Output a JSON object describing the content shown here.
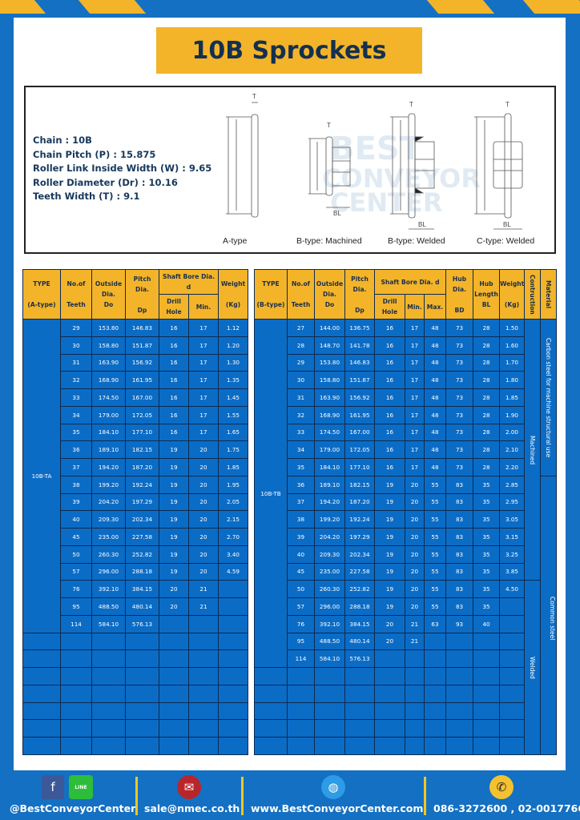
{
  "title": "10B Sprockets",
  "specs": [
    "Chain  :  10B",
    "Chain Pitch (P)  :  15.875",
    "Roller Link Inside Width (W) : 9.65",
    "Roller Diameter (Dr) : 10.16",
    "Teeth Width (T)  :  9.1"
  ],
  "diagram": {
    "captions": [
      "A-type",
      "B-type: Machined",
      "B-type: Welded",
      "C-type: Welded"
    ],
    "labels": {
      "T": "T",
      "Do": "Do",
      "Dp": "Dp",
      "d": "d",
      "BD": "BD",
      "BL": "BL"
    }
  },
  "table_a": {
    "headers": {
      "type": "TYPE",
      "type_sub": "(A-type)",
      "teeth": "No.of",
      "teeth_sub": "Teeth",
      "do": "Outside",
      "do_sub": "Dia.",
      "do_sub2": "Do",
      "dp": "Pitch Dia.",
      "dp_sub": "Dp",
      "bore": "Shaft Bore Dia. d",
      "drill": "Drill Hole",
      "min": "Min.",
      "weight": "Weight",
      "weight_sub": "(Kg)"
    },
    "type_label": "10B-TA",
    "rows": [
      [
        "29",
        "153.80",
        "146.83",
        "16",
        "17",
        "1.12"
      ],
      [
        "30",
        "158.80",
        "151.87",
        "16",
        "17",
        "1.20"
      ],
      [
        "31",
        "163.90",
        "156.92",
        "16",
        "17",
        "1.30"
      ],
      [
        "32",
        "168.90",
        "161.95",
        "16",
        "17",
        "1.35"
      ],
      [
        "33",
        "174.50",
        "167.00",
        "16",
        "17",
        "1.45"
      ],
      [
        "34",
        "179.00",
        "172.05",
        "16",
        "17",
        "1.55"
      ],
      [
        "35",
        "184.10",
        "177.10",
        "16",
        "17",
        "1.65"
      ],
      [
        "36",
        "189.10",
        "182.15",
        "19",
        "20",
        "1.75"
      ],
      [
        "37",
        "194.20",
        "187.20",
        "19",
        "20",
        "1.85"
      ],
      [
        "38",
        "199.20",
        "192.24",
        "19",
        "20",
        "1.95"
      ],
      [
        "39",
        "204.20",
        "197.29",
        "19",
        "20",
        "2.05"
      ],
      [
        "40",
        "209.30",
        "202.34",
        "19",
        "20",
        "2.15"
      ],
      [
        "45",
        "235.00",
        "227.58",
        "19",
        "20",
        "2.70"
      ],
      [
        "50",
        "260.30",
        "252.82",
        "19",
        "20",
        "3.40"
      ],
      [
        "57",
        "296.00",
        "288.18",
        "19",
        "20",
        "4.59"
      ],
      [
        "76",
        "392.10",
        "384.15",
        "20",
        "21",
        ""
      ],
      [
        "95",
        "488.50",
        "480.14",
        "20",
        "21",
        ""
      ],
      [
        "114",
        "584.10",
        "576.13",
        "",
        "",
        ""
      ]
    ]
  },
  "table_b": {
    "headers": {
      "type": "TYPE",
      "type_sub": "(B-type)",
      "teeth": "No.of",
      "teeth_sub": "Teeth",
      "do": "Outside",
      "do_sub": "Dia.",
      "do_sub2": "Do",
      "dp": "Pitch Dia.",
      "dp_sub": "Dp",
      "bore": "Shaft Bore Dia. d",
      "drill": "Drill Hole",
      "min": "Min.",
      "max": "Max.",
      "bd": "Hub Dia.",
      "bd_sub": "BD",
      "bl": "Hub",
      "bl_sub": "Length",
      "bl_sub2": "BL",
      "weight": "Weight",
      "weight_sub": "(Kg)",
      "construction": "Contruction",
      "material": "Material"
    },
    "type_label": "10B-TB",
    "construction": [
      "Machined",
      "Welded"
    ],
    "material": [
      "Carbon steel for machine structural use",
      "Common steel"
    ],
    "rows": [
      [
        "27",
        "144.00",
        "136.75",
        "16",
        "17",
        "48",
        "73",
        "28",
        "1.50"
      ],
      [
        "28",
        "148.70",
        "141.78",
        "16",
        "17",
        "48",
        "73",
        "28",
        "1.60"
      ],
      [
        "29",
        "153.80",
        "146.83",
        "16",
        "17",
        "48",
        "73",
        "28",
        "1.70"
      ],
      [
        "30",
        "158.80",
        "151.87",
        "16",
        "17",
        "48",
        "73",
        "28",
        "1.80"
      ],
      [
        "31",
        "163.90",
        "156.92",
        "16",
        "17",
        "48",
        "73",
        "28",
        "1.85"
      ],
      [
        "32",
        "168.90",
        "161.95",
        "16",
        "17",
        "48",
        "73",
        "28",
        "1.90"
      ],
      [
        "33",
        "174.50",
        "167.00",
        "16",
        "17",
        "48",
        "73",
        "28",
        "2.00"
      ],
      [
        "34",
        "179.00",
        "172.05",
        "16",
        "17",
        "48",
        "73",
        "28",
        "2.10"
      ],
      [
        "35",
        "184.10",
        "177.10",
        "16",
        "17",
        "48",
        "73",
        "28",
        "2.20"
      ],
      [
        "36",
        "189.10",
        "182.15",
        "19",
        "20",
        "55",
        "83",
        "35",
        "2.85"
      ],
      [
        "37",
        "194.20",
        "187.20",
        "19",
        "20",
        "55",
        "83",
        "35",
        "2.95"
      ],
      [
        "38",
        "199.20",
        "192.24",
        "19",
        "20",
        "55",
        "83",
        "35",
        "3.05"
      ],
      [
        "39",
        "204.20",
        "197.29",
        "19",
        "20",
        "55",
        "83",
        "35",
        "3.15"
      ],
      [
        "40",
        "209.30",
        "202.34",
        "19",
        "20",
        "55",
        "83",
        "35",
        "3.25"
      ],
      [
        "45",
        "235.00",
        "227.58",
        "19",
        "20",
        "55",
        "83",
        "35",
        "3.85"
      ],
      [
        "50",
        "260.30",
        "252.82",
        "19",
        "20",
        "55",
        "83",
        "35",
        "4.50"
      ],
      [
        "57",
        "296.00",
        "288.18",
        "19",
        "20",
        "55",
        "83",
        "35",
        ""
      ],
      [
        "76",
        "392.10",
        "384.15",
        "20",
        "21",
        "63",
        "93",
        "40",
        ""
      ],
      [
        "95",
        "488.50",
        "480.14",
        "20",
        "21",
        "",
        "",
        "",
        ""
      ],
      [
        "114",
        "584.10",
        "576.13",
        "",
        "",
        "",
        "",
        "",
        ""
      ]
    ]
  },
  "footer": {
    "social": "@BestConveyorCenter",
    "email": "sale@nmec.co.th",
    "website": "www.BestConveyorCenter.com",
    "phone": "086-3272600 , 02-0017766",
    "line_badge": "LINE"
  },
  "colors": {
    "brand_blue": "#1470c2",
    "accent_yellow": "#f3b42a",
    "cell_blue": "#0b6cc6"
  }
}
